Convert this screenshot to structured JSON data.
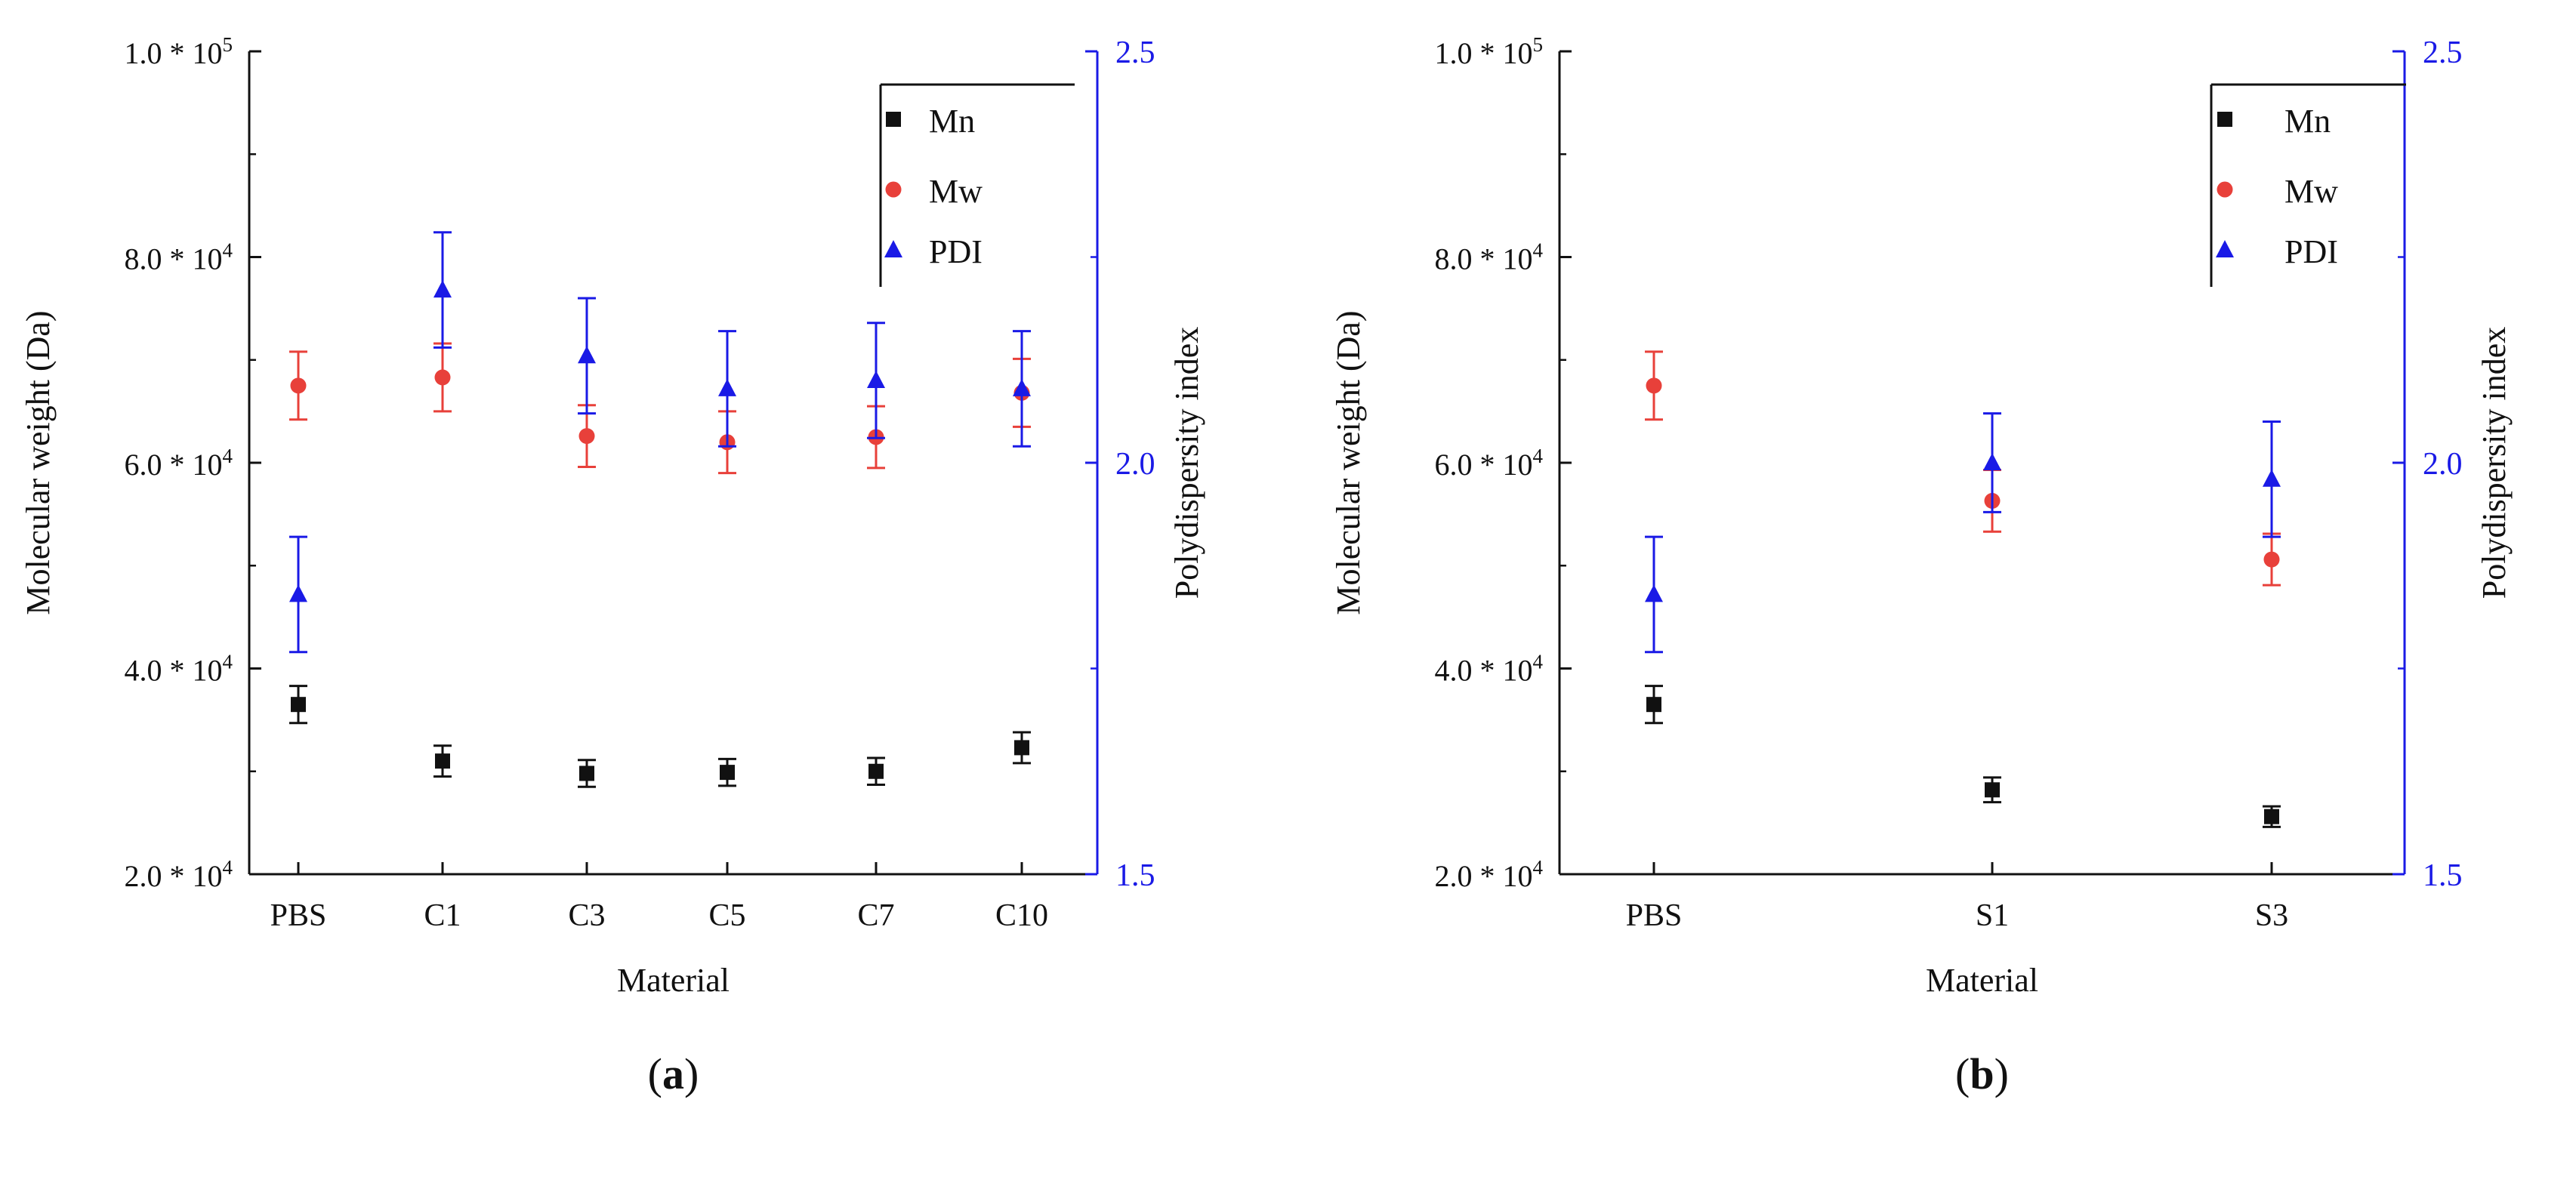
{
  "colors": {
    "mn": "#111111",
    "mw": "#e8403a",
    "pdi": "#1a1ae6",
    "axis": "#111111"
  },
  "chart_data": [
    {
      "type": "scatter",
      "panel_label": "(a)",
      "panel_letter": "a",
      "xlabel": "Material",
      "ylabel": "Molecular weight (Da)",
      "y2label": "Polydispersity index",
      "categories": [
        "PBS",
        "C1",
        "C3",
        "C5",
        "C7",
        "C10"
      ],
      "ylim": [
        20000,
        100000
      ],
      "y2lim": [
        1.5,
        2.5
      ],
      "y_ticks": [
        {
          "value": 20000,
          "mant": "2.0",
          "base": "10",
          "exp": "4"
        },
        {
          "value": 40000,
          "mant": "4.0",
          "base": "10",
          "exp": "4"
        },
        {
          "value": 60000,
          "mant": "6.0",
          "base": "10",
          "exp": "4"
        },
        {
          "value": 80000,
          "mant": "8.0",
          "base": "10",
          "exp": "4"
        },
        {
          "value": 100000,
          "mant": "1.0",
          "base": "10",
          "exp": "5"
        }
      ],
      "y2_ticks": [
        "1.5",
        "2.0",
        "2.5"
      ],
      "legend": [
        "Mn",
        "Mw",
        "PDI"
      ],
      "series": [
        {
          "name": "Mn",
          "axis": "left",
          "marker": "square",
          "values": [
            36500,
            31000,
            29800,
            29900,
            30000,
            32300
          ],
          "errors": [
            1800,
            1500,
            1300,
            1300,
            1300,
            1500
          ]
        },
        {
          "name": "Mw",
          "axis": "left",
          "marker": "circle",
          "values": [
            67500,
            68300,
            62600,
            62000,
            62500,
            66800
          ],
          "errors": [
            3300,
            3300,
            3000,
            3000,
            3000,
            3300
          ]
        },
        {
          "name": "PDI",
          "axis": "right",
          "marker": "triangle",
          "values": [
            1.84,
            2.21,
            2.13,
            2.09,
            2.1,
            2.09
          ],
          "errors": [
            0.07,
            0.07,
            0.07,
            0.07,
            0.07,
            0.07
          ]
        }
      ]
    },
    {
      "type": "scatter",
      "panel_label": "(b)",
      "panel_letter": "b",
      "xlabel": "Material",
      "ylabel": "Molecular weight (Da)",
      "y2label": "Polydispersity index",
      "categories": [
        "PBS",
        "S1",
        "S3"
      ],
      "ylim": [
        20000,
        100000
      ],
      "y2lim": [
        1.5,
        2.5
      ],
      "y_ticks": [
        {
          "value": 20000,
          "mant": "2.0",
          "base": "10",
          "exp": "4"
        },
        {
          "value": 40000,
          "mant": "4.0",
          "base": "10",
          "exp": "4"
        },
        {
          "value": 60000,
          "mant": "6.0",
          "base": "10",
          "exp": "4"
        },
        {
          "value": 80000,
          "mant": "8.0",
          "base": "10",
          "exp": "4"
        },
        {
          "value": 100000,
          "mant": "1.0",
          "base": "10",
          "exp": "5"
        }
      ],
      "y2_ticks": [
        "1.5",
        "2.0",
        "2.5"
      ],
      "legend": [
        "Mn",
        "Mw",
        "PDI"
      ],
      "series": [
        {
          "name": "Mn",
          "axis": "left",
          "marker": "square",
          "values": [
            36500,
            28200,
            25600
          ],
          "errors": [
            1800,
            1200,
            1000
          ]
        },
        {
          "name": "Mw",
          "axis": "left",
          "marker": "circle",
          "values": [
            67500,
            56300,
            50600
          ],
          "errors": [
            3300,
            3000,
            2500
          ]
        },
        {
          "name": "PDI",
          "axis": "right",
          "marker": "triangle",
          "values": [
            1.84,
            2.0,
            1.98
          ],
          "errors": [
            0.07,
            0.06,
            0.07
          ]
        }
      ]
    }
  ]
}
